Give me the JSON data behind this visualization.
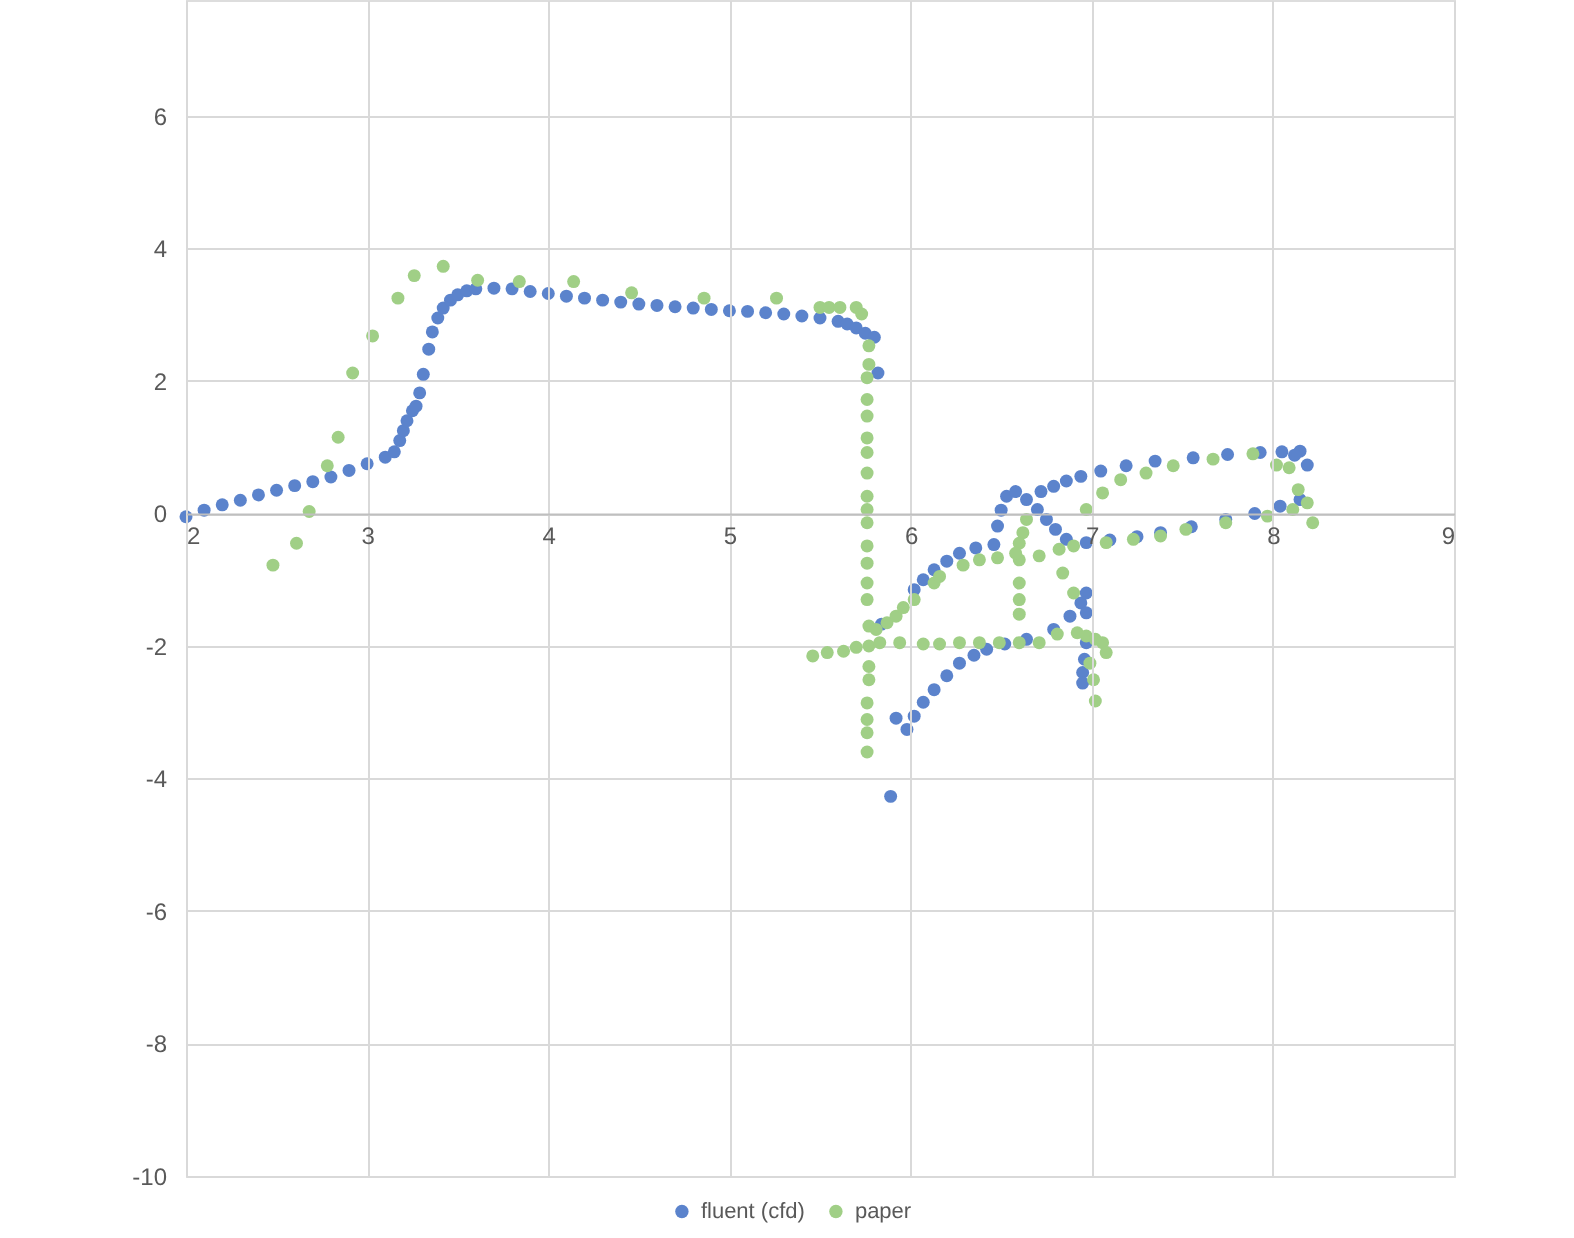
{
  "chart_data": {
    "type": "scatter",
    "marker": "circle",
    "grid": true,
    "legend": "bottom",
    "xlim": [
      2,
      9
    ],
    "xticks": [
      2,
      3,
      4,
      5,
      6,
      7,
      8,
      9
    ],
    "ylim": [
      -10,
      7.75
    ],
    "yticks": [
      -10,
      -8,
      -6,
      -4,
      -2,
      0,
      2,
      4,
      6
    ],
    "series": [
      {
        "name": "fluent (cfd)",
        "color": "#5b83cc",
        "x": [
          2.0,
          2.1,
          2.2,
          2.3,
          2.4,
          2.5,
          2.6,
          2.7,
          2.8,
          2.9,
          3.0,
          3.1,
          3.15,
          3.18,
          3.2,
          3.22,
          3.25,
          3.27,
          3.29,
          3.31,
          3.34,
          3.36,
          3.39,
          3.42,
          3.46,
          3.5,
          3.55,
          3.6,
          3.7,
          3.8,
          3.9,
          4.0,
          4.1,
          4.2,
          4.3,
          4.4,
          4.5,
          4.6,
          4.7,
          4.8,
          4.9,
          5.0,
          5.1,
          5.2,
          5.3,
          5.4,
          5.5,
          5.6,
          5.65,
          5.7,
          5.75,
          5.8,
          5.82,
          5.84,
          5.89,
          5.92,
          5.98,
          6.02,
          6.07,
          6.13,
          6.2,
          6.27,
          6.35,
          6.42,
          6.52,
          6.64,
          6.79,
          6.88,
          6.94,
          6.97,
          6.97,
          6.97,
          6.96,
          6.95,
          6.95,
          6.02,
          6.07,
          6.13,
          6.2,
          6.27,
          6.36,
          6.46,
          6.48,
          6.5,
          6.53,
          6.58,
          6.64,
          6.7,
          6.75,
          6.8,
          6.86,
          6.97,
          7.1,
          7.25,
          7.38,
          7.55,
          7.74,
          7.9,
          8.04,
          8.15,
          6.72,
          6.79,
          6.86,
          6.94,
          7.05,
          7.19,
          7.35,
          7.56,
          7.75,
          7.93,
          8.05,
          8.15,
          8.12,
          8.19
        ],
        "values": [
          -0.05,
          0.05,
          0.13,
          0.2,
          0.28,
          0.35,
          0.42,
          0.48,
          0.55,
          0.65,
          0.75,
          0.85,
          0.93,
          1.1,
          1.25,
          1.4,
          1.55,
          1.62,
          1.82,
          2.1,
          2.48,
          2.74,
          2.95,
          3.1,
          3.22,
          3.3,
          3.36,
          3.39,
          3.4,
          3.39,
          3.35,
          3.32,
          3.28,
          3.25,
          3.22,
          3.19,
          3.16,
          3.14,
          3.12,
          3.1,
          3.08,
          3.06,
          3.05,
          3.03,
          3.01,
          2.98,
          2.95,
          2.9,
          2.86,
          2.8,
          2.72,
          2.66,
          2.12,
          -1.67,
          -4.27,
          -3.09,
          -3.26,
          -3.06,
          -2.85,
          -2.66,
          -2.45,
          -2.26,
          -2.14,
          -2.05,
          -1.97,
          -1.9,
          -1.75,
          -1.55,
          -1.35,
          -1.2,
          -1.5,
          -1.95,
          -2.2,
          -2.4,
          -2.56,
          -1.15,
          -1.0,
          -0.85,
          -0.72,
          -0.6,
          -0.52,
          -0.47,
          -0.19,
          0.05,
          0.26,
          0.33,
          0.21,
          0.06,
          -0.09,
          -0.24,
          -0.39,
          -0.44,
          -0.4,
          -0.35,
          -0.29,
          -0.2,
          -0.09,
          0.0,
          0.11,
          0.21,
          0.33,
          0.41,
          0.49,
          0.56,
          0.64,
          0.72,
          0.79,
          0.84,
          0.89,
          0.92,
          0.93,
          0.94,
          0.88,
          0.73
        ]
      },
      {
        "name": "paper",
        "color": "#a0cf86",
        "x": [
          2.48,
          2.61,
          2.68,
          2.78,
          2.84,
          2.92,
          3.03,
          3.17,
          3.26,
          3.42,
          3.61,
          3.84,
          4.14,
          4.46,
          4.86,
          5.26,
          5.5,
          5.55,
          5.61,
          5.7,
          5.73,
          5.77,
          5.77,
          5.76,
          5.76,
          5.76,
          5.76,
          5.76,
          5.76,
          5.76,
          5.76,
          5.76,
          5.76,
          5.76,
          5.76,
          5.76,
          5.77,
          5.77,
          5.77,
          5.77,
          5.76,
          5.76,
          5.76,
          5.76,
          5.46,
          5.54,
          5.63,
          5.7,
          5.83,
          5.94,
          6.07,
          6.16,
          6.27,
          6.38,
          6.49,
          6.6,
          6.71,
          6.81,
          5.81,
          5.87,
          5.92,
          5.96,
          6.02,
          6.13,
          6.16,
          6.29,
          6.38,
          6.48,
          6.6,
          6.71,
          6.82,
          6.9,
          6.64,
          6.62,
          6.6,
          6.58,
          6.6,
          6.6,
          6.6,
          6.84,
          6.9,
          6.92,
          6.97,
          7.02,
          7.06,
          7.08,
          6.99,
          7.01,
          7.02,
          7.08,
          7.23,
          7.38,
          7.52,
          7.74,
          7.97,
          8.11,
          8.19,
          8.22,
          8.14,
          6.97,
          7.06,
          7.16,
          7.3,
          7.45,
          7.67,
          7.89,
          8.02,
          8.09
        ],
        "values": [
          -0.78,
          -0.45,
          0.03,
          0.72,
          1.15,
          2.12,
          2.68,
          3.25,
          3.59,
          3.73,
          3.52,
          3.5,
          3.5,
          3.33,
          3.25,
          3.25,
          3.11,
          3.11,
          3.11,
          3.11,
          3.01,
          2.53,
          2.25,
          2.05,
          1.72,
          1.47,
          1.14,
          0.92,
          0.61,
          0.26,
          0.06,
          -0.14,
          -0.49,
          -0.75,
          -1.05,
          -1.3,
          -1.7,
          -2.0,
          -2.31,
          -2.51,
          -2.86,
          -3.11,
          -3.31,
          -3.6,
          -2.15,
          -2.1,
          -2.08,
          -2.02,
          -1.95,
          -1.95,
          -1.97,
          -1.97,
          -1.95,
          -1.95,
          -1.95,
          -1.95,
          -1.95,
          -1.82,
          -1.75,
          -1.65,
          -1.55,
          -1.42,
          -1.3,
          -1.05,
          -0.95,
          -0.78,
          -0.7,
          -0.67,
          -0.7,
          -0.64,
          -0.54,
          -0.49,
          -0.09,
          -0.29,
          -0.45,
          -0.6,
          -1.05,
          -1.3,
          -1.52,
          -0.9,
          -1.2,
          -1.8,
          -1.85,
          -1.9,
          -1.95,
          -2.1,
          -2.26,
          -2.51,
          -2.83,
          -0.44,
          -0.39,
          -0.34,
          -0.24,
          -0.14,
          -0.04,
          0.06,
          0.16,
          -0.14,
          0.36,
          0.06,
          0.31,
          0.51,
          0.61,
          0.72,
          0.82,
          0.9,
          0.73,
          0.69
        ]
      }
    ]
  }
}
